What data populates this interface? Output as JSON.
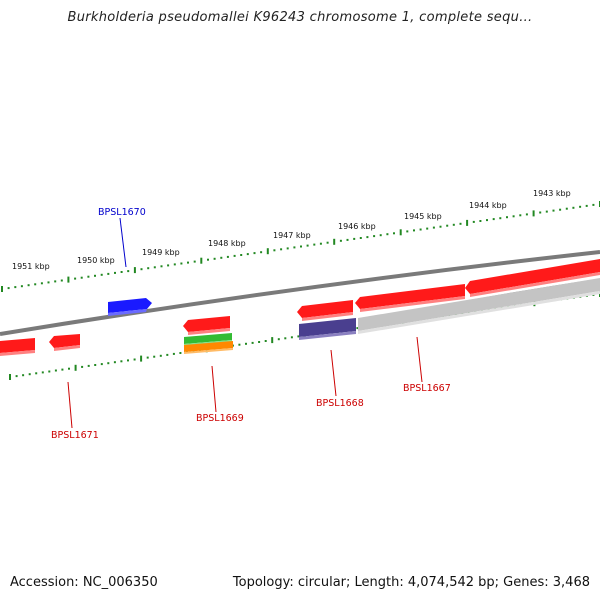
{
  "title": "Burkholderia pseudomallei K96243 chromosome 1, complete sequ...",
  "footer": {
    "accession": "Accession: NC_006350",
    "summary": "Topology: circular; Length: 4,074,542 bp; Genes: 3,468"
  },
  "ruler_labels": [
    "1951 kbp",
    "1950 kbp",
    "1949 kbp",
    "1948 kbp",
    "1947 kbp",
    "1946 kbp",
    "1945 kbp",
    "1944 kbp",
    "1943 kbp"
  ],
  "genes": [
    {
      "name": "BPSL1670",
      "color": "#0000cc"
    },
    {
      "name": "BPSL1671",
      "color": "#cc0000"
    },
    {
      "name": "BPSL1669",
      "color": "#cc0000"
    },
    {
      "name": "BPSL1668",
      "color": "#cc0000"
    },
    {
      "name": "BPSL1667",
      "color": "#cc0000"
    }
  ],
  "colors": {
    "gene_red": "#ff0000",
    "gene_blue": "#0000ff",
    "gene_purple": "#4a3f8f",
    "gene_gray": "#bbbbbb",
    "gene_green": "#33bb33",
    "gene_orange": "#ff8800",
    "tick": "#228822",
    "backbone": "#777777"
  }
}
